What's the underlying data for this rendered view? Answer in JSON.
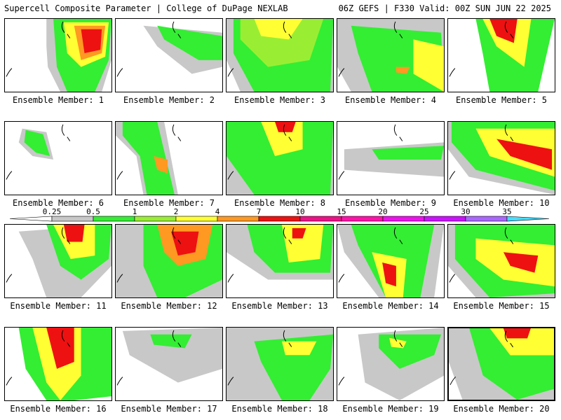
{
  "header": {
    "left_title": "Supercell Composite Parameter | College of DuPage NEXLAB",
    "right_title": "06Z GEFS | F330 Valid: 00Z SUN JUN 22 2025"
  },
  "colors": {
    "0.25": "#c8c8c8",
    "0.5": "#33ee33",
    "1": "#99ee33",
    "2": "#ffff33",
    "4": "#ff9922",
    "7": "#ee1111",
    "10": "#ee1188",
    "15": "#ff11aa",
    "20": "#ee11ee",
    "25": "#cc11ff",
    "30": "#aa66ff",
    "35": "#44ddff"
  },
  "legend": {
    "ticks": [
      "0.25",
      "0.5",
      "1",
      "2",
      "4",
      "7",
      "10",
      "15",
      "20",
      "25",
      "30",
      "35"
    ]
  },
  "members": [
    {
      "label": "Ensemble Member: 1"
    },
    {
      "label": "Ensemble Member: 2"
    },
    {
      "label": "Ensemble Member: 3"
    },
    {
      "label": "Ensemble Member: 4"
    },
    {
      "label": "Ensemble Member: 5"
    },
    {
      "label": "Ensemble Member: 6"
    },
    {
      "label": "Ensemble Member: 7"
    },
    {
      "label": "Ensemble Member: 8"
    },
    {
      "label": "Ensemble Member: 9"
    },
    {
      "label": "Ensemble Member: 10"
    },
    {
      "label": "Ensemble Member: 11"
    },
    {
      "label": "Ensemble Member: 12"
    },
    {
      "label": "Ensemble Member: 13"
    },
    {
      "label": "Ensemble Member: 14"
    },
    {
      "label": "Ensemble Member: 15"
    },
    {
      "label": "Ensemble Member: 16"
    },
    {
      "label": "Ensemble Member: 17"
    },
    {
      "label": "Ensemble Member: 18"
    },
    {
      "label": "Ensemble Member: 19"
    },
    {
      "label": "Ensemble Member: 20"
    }
  ]
}
